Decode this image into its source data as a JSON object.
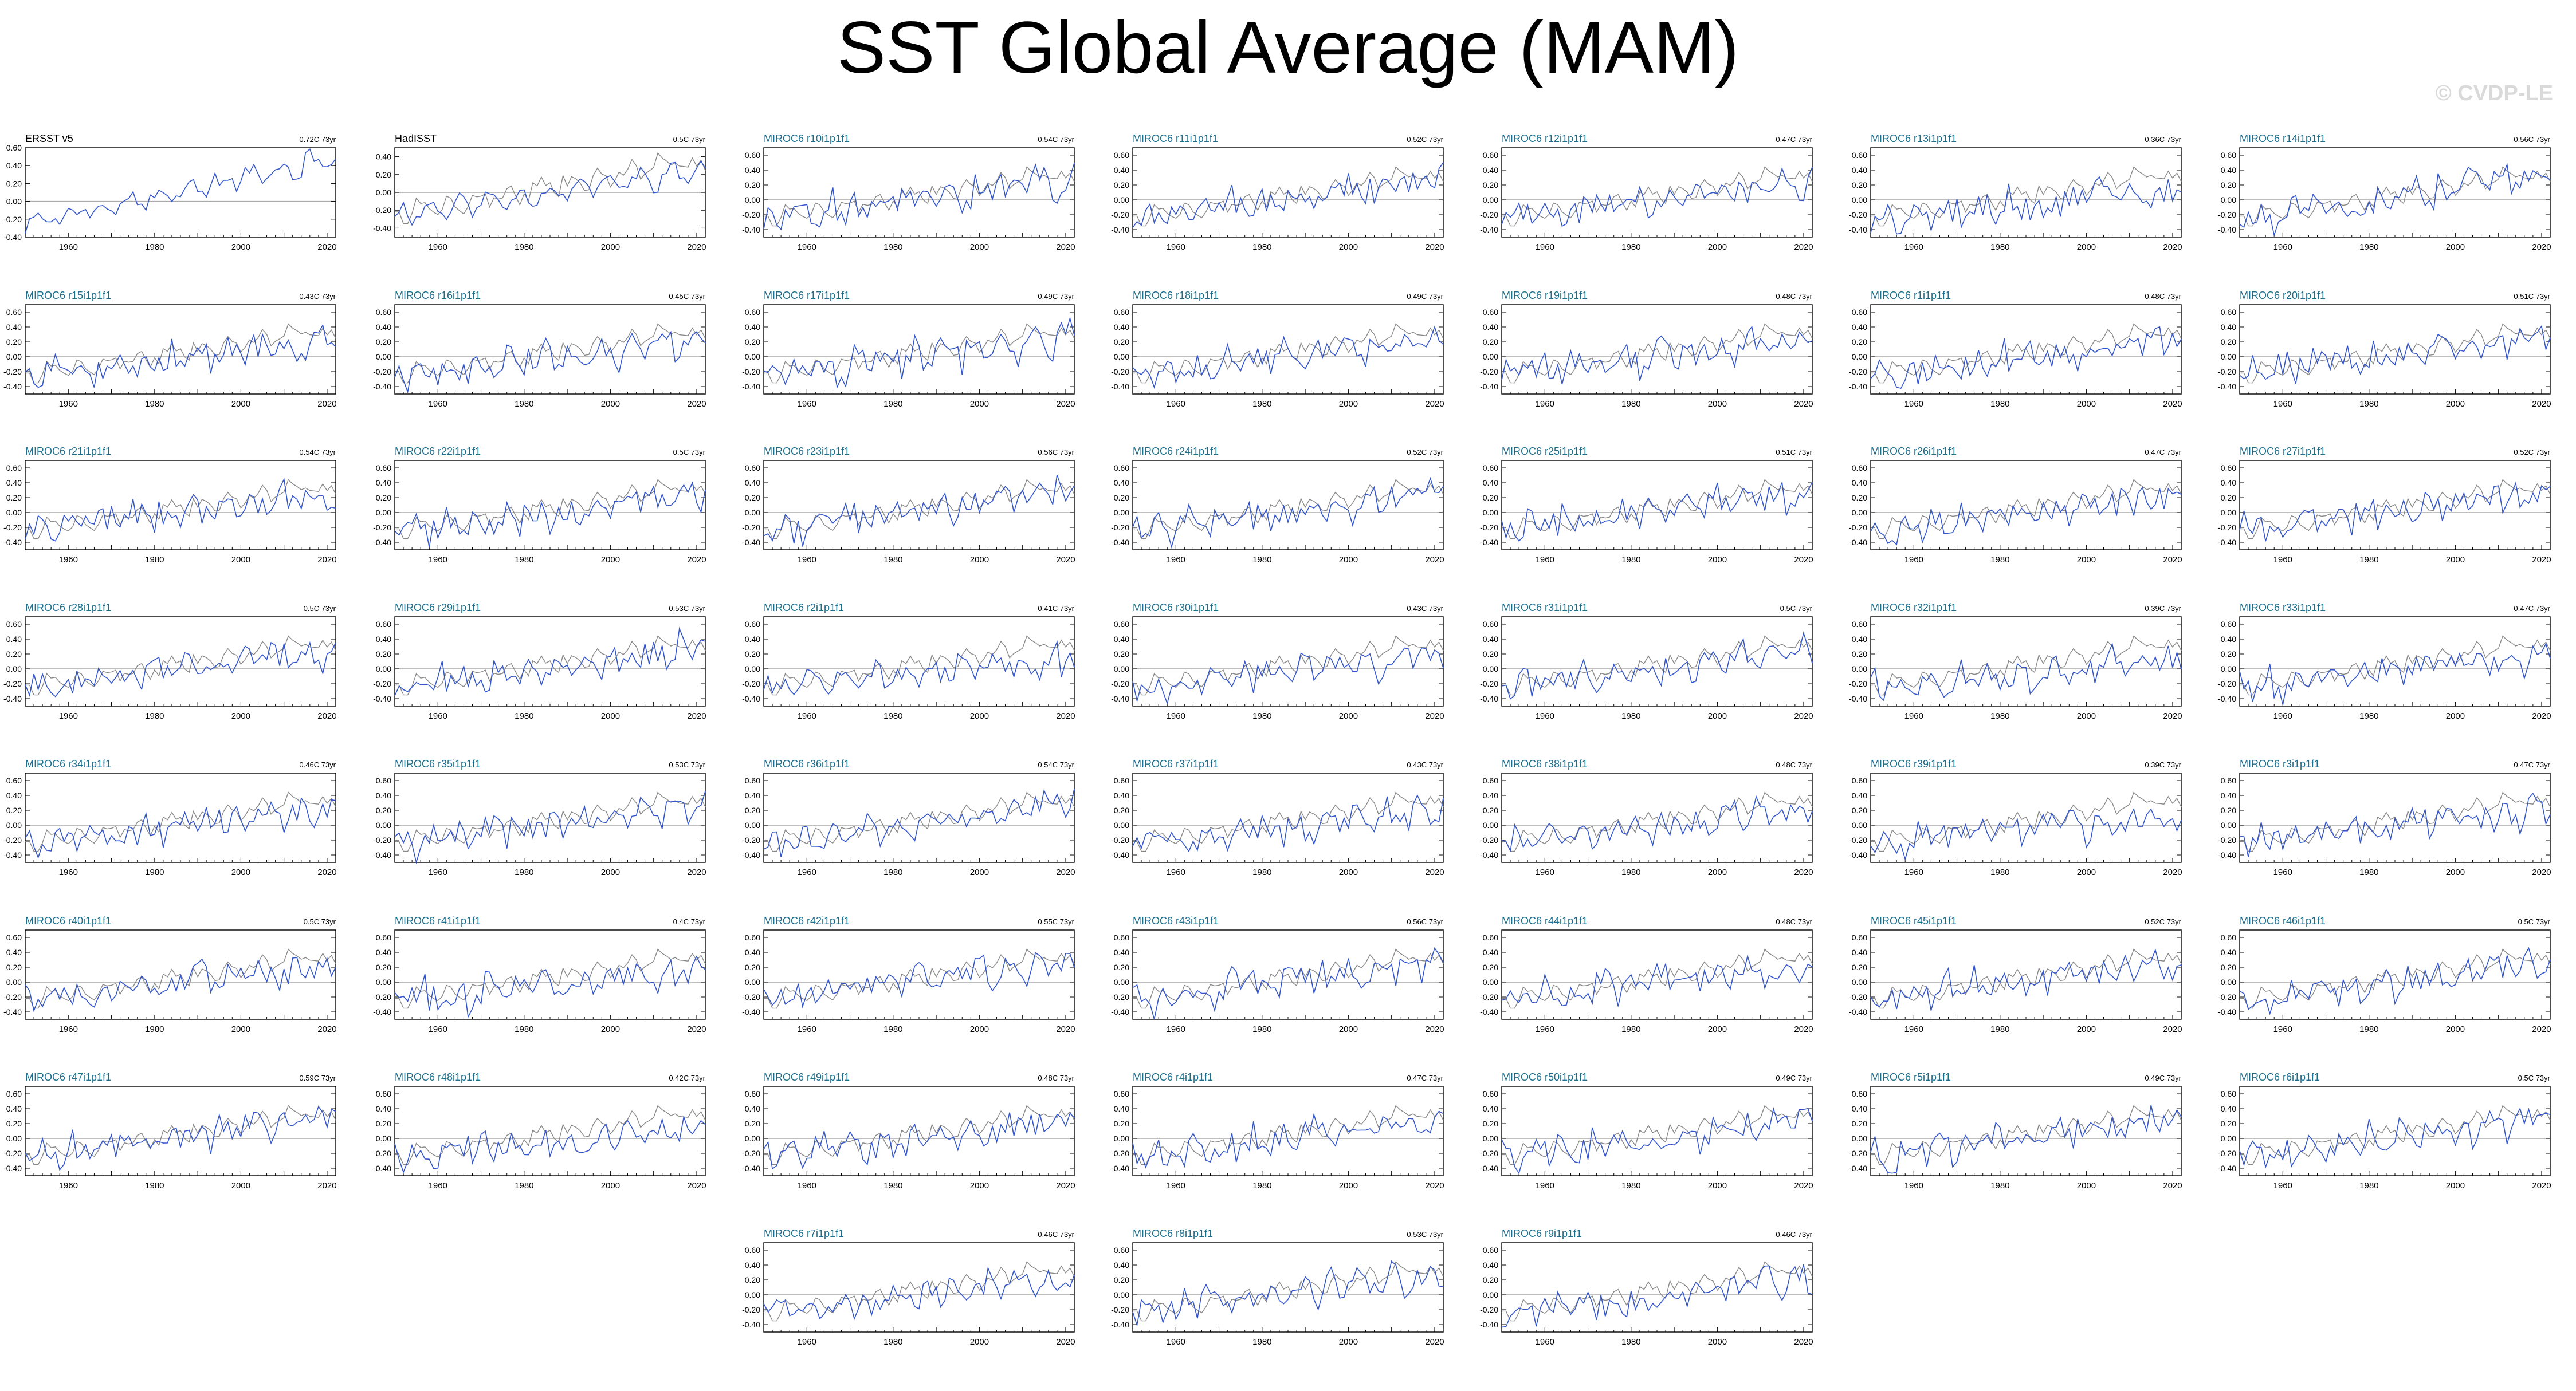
{
  "title": "SST Global Average (MAM)",
  "watermark": "© CVDP-LE",
  "colors": {
    "model_line": "#3355cc",
    "obs_line": "#888888",
    "model_title": "#1a6e8e",
    "obs_title": "#000000",
    "zero_line": "#aaaaaa"
  },
  "chart_data": {
    "type": "line",
    "x_range": [
      1950,
      2022
    ],
    "x_ticks": [
      1960,
      1980,
      2000,
      2020
    ],
    "panels": [
      {
        "name": "ERSST v5",
        "trend": "0.72C 73yr",
        "obs": true,
        "ylim": [
          -0.4,
          0.6
        ],
        "yticks": [
          "0.60",
          "0.40",
          "0.20",
          "0.00",
          "-0.20",
          "-0.40"
        ]
      },
      {
        "name": "HadISST",
        "trend": "0.5C 73yr",
        "obs": true,
        "ylim": [
          -0.5,
          0.5
        ],
        "yticks": [
          "0.40",
          "0.20",
          "0.00",
          "-0.20",
          "-0.40"
        ]
      },
      {
        "name": "MIROC6 r10i1p1f1",
        "trend": "0.54C 73yr"
      },
      {
        "name": "MIROC6 r11i1p1f1",
        "trend": "0.52C 73yr"
      },
      {
        "name": "MIROC6 r12i1p1f1",
        "trend": "0.47C 73yr"
      },
      {
        "name": "MIROC6 r13i1p1f1",
        "trend": "0.36C 73yr"
      },
      {
        "name": "MIROC6 r14i1p1f1",
        "trend": "0.56C 73yr"
      },
      {
        "name": "MIROC6 r15i1p1f1",
        "trend": "0.43C 73yr"
      },
      {
        "name": "MIROC6 r16i1p1f1",
        "trend": "0.45C 73yr"
      },
      {
        "name": "MIROC6 r17i1p1f1",
        "trend": "0.49C 73yr"
      },
      {
        "name": "MIROC6 r18i1p1f1",
        "trend": "0.49C 73yr"
      },
      {
        "name": "MIROC6 r19i1p1f1",
        "trend": "0.48C 73yr"
      },
      {
        "name": "MIROC6 r1i1p1f1",
        "trend": "0.48C 73yr"
      },
      {
        "name": "MIROC6 r20i1p1f1",
        "trend": "0.51C 73yr"
      },
      {
        "name": "MIROC6 r21i1p1f1",
        "trend": "0.54C 73yr"
      },
      {
        "name": "MIROC6 r22i1p1f1",
        "trend": "0.5C 73yr"
      },
      {
        "name": "MIROC6 r23i1p1f1",
        "trend": "0.56C 73yr"
      },
      {
        "name": "MIROC6 r24i1p1f1",
        "trend": "0.52C 73yr"
      },
      {
        "name": "MIROC6 r25i1p1f1",
        "trend": "0.51C 73yr"
      },
      {
        "name": "MIROC6 r26i1p1f1",
        "trend": "0.47C 73yr"
      },
      {
        "name": "MIROC6 r27i1p1f1",
        "trend": "0.52C 73yr"
      },
      {
        "name": "MIROC6 r28i1p1f1",
        "trend": "0.5C 73yr"
      },
      {
        "name": "MIROC6 r29i1p1f1",
        "trend": "0.53C 73yr"
      },
      {
        "name": "MIROC6 r2i1p1f1",
        "trend": "0.41C 73yr"
      },
      {
        "name": "MIROC6 r30i1p1f1",
        "trend": "0.43C 73yr"
      },
      {
        "name": "MIROC6 r31i1p1f1",
        "trend": "0.5C 73yr"
      },
      {
        "name": "MIROC6 r32i1p1f1",
        "trend": "0.39C 73yr"
      },
      {
        "name": "MIROC6 r33i1p1f1",
        "trend": "0.47C 73yr"
      },
      {
        "name": "MIROC6 r34i1p1f1",
        "trend": "0.46C 73yr"
      },
      {
        "name": "MIROC6 r35i1p1f1",
        "trend": "0.53C 73yr"
      },
      {
        "name": "MIROC6 r36i1p1f1",
        "trend": "0.54C 73yr"
      },
      {
        "name": "MIROC6 r37i1p1f1",
        "trend": "0.43C 73yr"
      },
      {
        "name": "MIROC6 r38i1p1f1",
        "trend": "0.48C 73yr"
      },
      {
        "name": "MIROC6 r39i1p1f1",
        "trend": "0.39C 73yr"
      },
      {
        "name": "MIROC6 r3i1p1f1",
        "trend": "0.47C 73yr"
      },
      {
        "name": "MIROC6 r40i1p1f1",
        "trend": "0.5C 73yr"
      },
      {
        "name": "MIROC6 r41i1p1f1",
        "trend": "0.4C 73yr"
      },
      {
        "name": "MIROC6 r42i1p1f1",
        "trend": "0.55C 73yr"
      },
      {
        "name": "MIROC6 r43i1p1f1",
        "trend": "0.56C 73yr"
      },
      {
        "name": "MIROC6 r44i1p1f1",
        "trend": "0.48C 73yr"
      },
      {
        "name": "MIROC6 r45i1p1f1",
        "trend": "0.52C 73yr"
      },
      {
        "name": "MIROC6 r46i1p1f1",
        "trend": "0.5C 73yr"
      },
      {
        "name": "MIROC6 r47i1p1f1",
        "trend": "0.59C 73yr"
      },
      {
        "name": "MIROC6 r48i1p1f1",
        "trend": "0.42C 73yr"
      },
      {
        "name": "MIROC6 r49i1p1f1",
        "trend": "0.48C 73yr"
      },
      {
        "name": "MIROC6 r4i1p1f1",
        "trend": "0.47C 73yr"
      },
      {
        "name": "MIROC6 r50i1p1f1",
        "trend": "0.49C 73yr"
      },
      {
        "name": "MIROC6 r5i1p1f1",
        "trend": "0.49C 73yr"
      },
      {
        "name": "MIROC6 r6i1p1f1",
        "trend": "0.5C 73yr"
      },
      {
        "name": "MIROC6 r7i1p1f1",
        "trend": "0.46C 73yr"
      },
      {
        "name": "MIROC6 r8i1p1f1",
        "trend": "0.53C 73yr"
      },
      {
        "name": "MIROC6 r9i1p1f1",
        "trend": "0.46C 73yr"
      }
    ]
  }
}
